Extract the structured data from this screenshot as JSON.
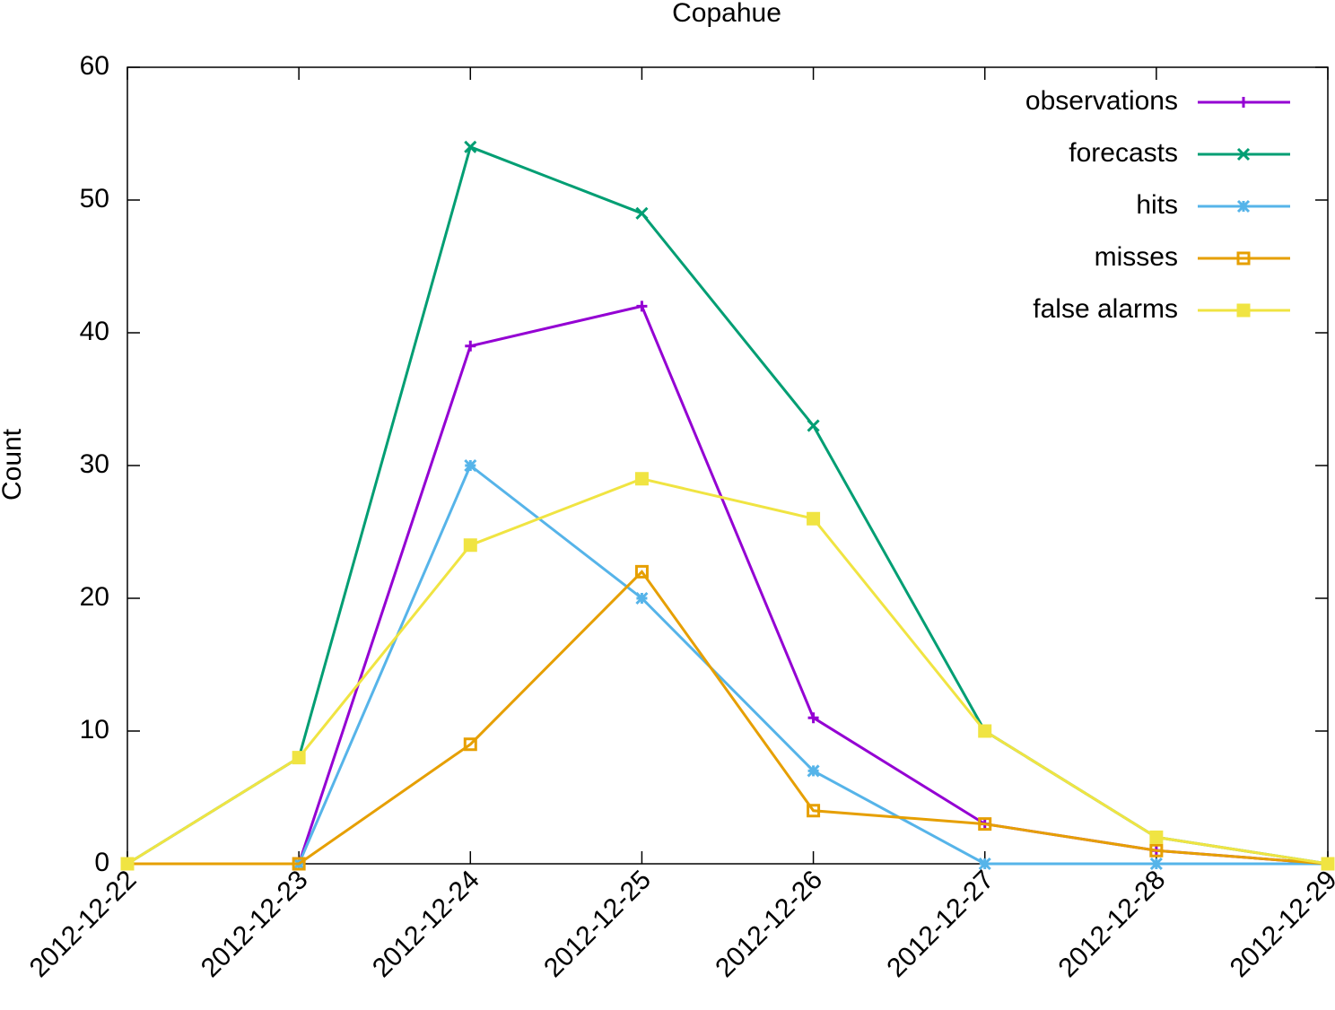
{
  "chart_data": {
    "type": "line",
    "title": "Copahue",
    "y_label": "Count",
    "x": [
      "2012-12-22",
      "2012-12-23",
      "2012-12-24",
      "2012-12-25",
      "2012-12-26",
      "2012-12-27",
      "2012-12-28",
      "2012-12-29"
    ],
    "series": [
      {
        "name": "observations",
        "color": "#9400d3",
        "marker": "plus",
        "values": [
          0,
          0,
          39,
          42,
          11,
          3,
          1,
          0
        ]
      },
      {
        "name": "forecasts",
        "color": "#009e73",
        "marker": "cross",
        "values": [
          0,
          8,
          54,
          49,
          33,
          10,
          2,
          0
        ]
      },
      {
        "name": "hits",
        "color": "#56b4e9",
        "marker": "star",
        "values": [
          0,
          0,
          30,
          20,
          7,
          0,
          0,
          0
        ]
      },
      {
        "name": "misses",
        "color": "#e69f00",
        "marker": "open-square",
        "values": [
          0,
          0,
          9,
          22,
          4,
          3,
          1,
          0
        ]
      },
      {
        "name": "false alarms",
        "color": "#f0e442",
        "marker": "filled-square",
        "values": [
          0,
          8,
          24,
          29,
          26,
          10,
          2,
          0
        ]
      }
    ],
    "ylim": [
      0,
      60
    ],
    "yticks": [
      0,
      10,
      20,
      30,
      40,
      50,
      60
    ],
    "legend": "top-right",
    "grid": false
  }
}
